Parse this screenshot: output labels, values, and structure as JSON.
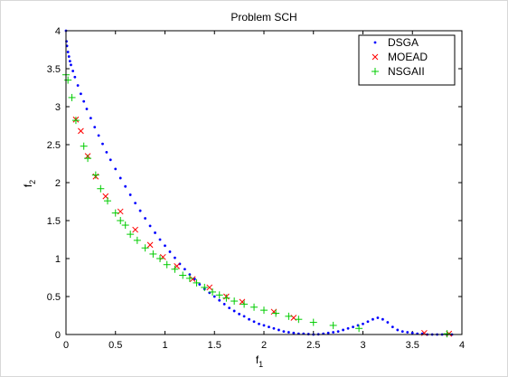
{
  "chart_data": {
    "type": "scatter",
    "title": "Problem SCH",
    "xlabel": "f",
    "xlabel_sub": "1",
    "ylabel": "f",
    "ylabel_sub": "2",
    "xlim": [
      0,
      4
    ],
    "ylim": [
      0,
      4
    ],
    "xticks": [
      "0",
      "0.5",
      "1",
      "1.5",
      "2",
      "2.5",
      "3",
      "3.5",
      "4"
    ],
    "yticks": [
      "0",
      "0.5",
      "1",
      "1.5",
      "2",
      "2.5",
      "3",
      "3.5",
      "4"
    ],
    "grid": false,
    "legend_position": "top-right",
    "series": [
      {
        "name": "DSGA",
        "marker": "dot",
        "color": "#0000ff",
        "x": [
          0,
          0.005,
          0.01,
          0.02,
          0.03,
          0.04,
          0.05,
          0.07,
          0.09,
          0.12,
          0.15,
          0.18,
          0.21,
          0.25,
          0.29,
          0.33,
          0.37,
          0.41,
          0.45,
          0.5,
          0.55,
          0.6,
          0.65,
          0.7,
          0.75,
          0.8,
          0.85,
          0.9,
          0.95,
          1.0,
          1.05,
          1.1,
          1.15,
          1.2,
          1.25,
          1.3,
          1.35,
          1.4,
          1.45,
          1.5,
          1.55,
          1.6,
          1.65,
          1.7,
          1.75,
          1.8,
          1.85,
          1.9,
          1.95,
          2.0,
          2.05,
          2.1,
          2.15,
          2.2,
          2.25,
          2.3,
          2.35,
          2.4,
          2.45,
          2.5,
          2.55,
          2.6,
          2.65,
          2.7,
          2.75,
          2.8,
          2.85,
          2.9,
          2.95,
          3.0,
          3.05,
          3.1,
          3.15,
          3.2,
          3.25,
          3.3,
          3.35,
          3.4,
          3.45,
          3.5,
          3.55,
          3.6,
          3.65,
          3.7,
          3.75,
          3.8,
          3.85,
          3.9
        ],
        "y": [
          4.0,
          3.86,
          3.8,
          3.72,
          3.66,
          3.6,
          3.55,
          3.47,
          3.39,
          3.28,
          3.17,
          3.07,
          2.97,
          2.85,
          2.73,
          2.62,
          2.51,
          2.4,
          2.3,
          2.18,
          2.06,
          1.95,
          1.84,
          1.73,
          1.63,
          1.53,
          1.43,
          1.34,
          1.25,
          1.17,
          1.09,
          1.01,
          0.93,
          0.86,
          0.79,
          0.73,
          0.66,
          0.6,
          0.55,
          0.5,
          0.45,
          0.4,
          0.35,
          0.31,
          0.27,
          0.24,
          0.2,
          0.17,
          0.14,
          0.12,
          0.1,
          0.08,
          0.06,
          0.04,
          0.03,
          0.02,
          0.01,
          0.01,
          0.005,
          0.0,
          0.003,
          0.01,
          0.02,
          0.03,
          0.04,
          0.06,
          0.08,
          0.1,
          0.12,
          0.14,
          0.17,
          0.2,
          0.22,
          0.2,
          0.16,
          0.1,
          0.06,
          0.04,
          0.03,
          0.02,
          0.01,
          0.01,
          0.0,
          0.0,
          0.0,
          0.0,
          0.0,
          0.0
        ]
      },
      {
        "name": "MOEAD",
        "marker": "x",
        "color": "#ff0000",
        "x": [
          0.1,
          0.15,
          0.22,
          0.3,
          0.4,
          0.55,
          0.7,
          0.85,
          0.98,
          1.12,
          1.28,
          1.45,
          1.62,
          1.78,
          2.1,
          2.3,
          3.62,
          3.87
        ],
        "y": [
          2.83,
          2.68,
          2.35,
          2.08,
          1.82,
          1.62,
          1.38,
          1.18,
          1.02,
          0.9,
          0.73,
          0.62,
          0.5,
          0.43,
          0.3,
          0.22,
          0.02,
          0.01
        ]
      },
      {
        "name": "NSGAII",
        "marker": "plus",
        "color": "#00cc00",
        "x": [
          0.0,
          0.02,
          0.06,
          0.1,
          0.18,
          0.22,
          0.3,
          0.35,
          0.42,
          0.5,
          0.55,
          0.6,
          0.65,
          0.72,
          0.8,
          0.88,
          0.95,
          1.02,
          1.1,
          1.18,
          1.25,
          1.32,
          1.4,
          1.48,
          1.55,
          1.62,
          1.7,
          1.8,
          1.9,
          2.0,
          2.12,
          2.25,
          2.35,
          2.5,
          2.7,
          2.96,
          3.85
        ],
        "y": [
          3.42,
          3.35,
          3.12,
          2.82,
          2.48,
          2.32,
          2.1,
          1.92,
          1.76,
          1.6,
          1.5,
          1.44,
          1.32,
          1.24,
          1.14,
          1.06,
          1.0,
          0.92,
          0.86,
          0.78,
          0.74,
          0.68,
          0.62,
          0.56,
          0.52,
          0.48,
          0.44,
          0.4,
          0.36,
          0.32,
          0.28,
          0.24,
          0.2,
          0.16,
          0.12,
          0.08,
          0.01
        ]
      }
    ]
  }
}
